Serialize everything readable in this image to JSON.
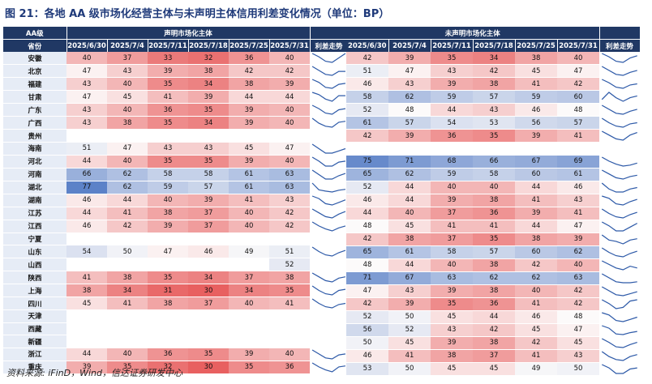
{
  "title": "图 21：各地 AA 级市场化经营主体与未声明主体信用利差变化情况（单位：BP）",
  "source": "资料来源: iFinD，Wind，信达证券研发中心",
  "header": {
    "aa_label": "AA级",
    "province_label": "省份",
    "declared_group": "声明市场化主体",
    "undeclared_group": "未声明市场化主体",
    "trend_label": "利差走势",
    "dates": [
      "2025/6/30",
      "2025/7/4",
      "2025/7/11",
      "2025/7/18",
      "2025/7/25",
      "2025/7/31"
    ]
  },
  "rows": [
    {
      "province": "安徽",
      "declared": [
        40,
        37,
        33,
        32,
        36,
        40
      ],
      "undeclared": [
        42,
        39,
        35,
        34,
        38,
        40
      ]
    },
    {
      "province": "北京",
      "declared": [
        47,
        43,
        39,
        38,
        42,
        42
      ],
      "undeclared": [
        51,
        47,
        43,
        42,
        45,
        47
      ]
    },
    {
      "province": "福建",
      "declared": [
        43,
        40,
        35,
        34,
        38,
        39
      ],
      "undeclared": [
        46,
        43,
        39,
        38,
        41,
        42
      ]
    },
    {
      "province": "甘肃",
      "declared": [
        47,
        45,
        41,
        39,
        44,
        44
      ],
      "undeclared": [
        58,
        62,
        59,
        57,
        59,
        60
      ]
    },
    {
      "province": "广东",
      "declared": [
        43,
        40,
        36,
        35,
        39,
        40
      ],
      "undeclared": [
        52,
        48,
        44,
        43,
        46,
        48
      ]
    },
    {
      "province": "广西",
      "declared": [
        43,
        38,
        35,
        34,
        39,
        40
      ],
      "undeclared": [
        61,
        57,
        54,
        53,
        56,
        57
      ]
    },
    {
      "province": "贵州",
      "declared": [
        null,
        null,
        null,
        null,
        null,
        null
      ],
      "undeclared": [
        42,
        39,
        36,
        35,
        39,
        41
      ]
    },
    {
      "province": "海南",
      "declared": [
        51,
        47,
        43,
        43,
        45,
        47
      ],
      "undeclared": [
        null,
        null,
        null,
        null,
        null,
        null
      ]
    },
    {
      "province": "河北",
      "declared": [
        44,
        40,
        35,
        35,
        39,
        40
      ],
      "undeclared": [
        75,
        71,
        68,
        66,
        67,
        69
      ]
    },
    {
      "province": "河南",
      "declared": [
        66,
        62,
        58,
        58,
        61,
        63
      ],
      "undeclared": [
        65,
        62,
        59,
        58,
        60,
        61
      ]
    },
    {
      "province": "湖北",
      "declared": [
        77,
        62,
        59,
        57,
        61,
        63
      ],
      "undeclared": [
        52,
        44,
        40,
        40,
        44,
        46
      ]
    },
    {
      "province": "湖南",
      "declared": [
        46,
        44,
        40,
        39,
        41,
        43
      ],
      "undeclared": [
        46,
        44,
        39,
        38,
        41,
        43
      ]
    },
    {
      "province": "江苏",
      "declared": [
        44,
        41,
        38,
        37,
        40,
        42
      ],
      "undeclared": [
        44,
        40,
        37,
        36,
        39,
        41
      ]
    },
    {
      "province": "江西",
      "declared": [
        46,
        42,
        39,
        37,
        40,
        42
      ],
      "undeclared": [
        48,
        45,
        41,
        41,
        44,
        47
      ]
    },
    {
      "province": "宁夏",
      "declared": [
        null,
        null,
        null,
        null,
        null,
        null
      ],
      "undeclared": [
        42,
        38,
        37,
        35,
        38,
        39
      ]
    },
    {
      "province": "山东",
      "declared": [
        54,
        50,
        47,
        46,
        49,
        51
      ],
      "undeclared": [
        65,
        61,
        58,
        57,
        60,
        62
      ]
    },
    {
      "province": "山西",
      "declared": [
        null,
        null,
        null,
        null,
        null,
        52
      ],
      "undeclared": [
        48,
        44,
        40,
        38,
        42,
        40
      ]
    },
    {
      "province": "陕西",
      "declared": [
        41,
        38,
        35,
        34,
        37,
        38
      ],
      "undeclared": [
        71,
        67,
        63,
        62,
        62,
        63
      ]
    },
    {
      "province": "上海",
      "declared": [
        38,
        34,
        31,
        30,
        34,
        35
      ],
      "undeclared": [
        47,
        43,
        39,
        38,
        40,
        42
      ]
    },
    {
      "province": "四川",
      "declared": [
        45,
        41,
        38,
        37,
        40,
        41
      ],
      "undeclared": [
        42,
        39,
        35,
        36,
        41,
        42
      ]
    },
    {
      "province": "天津",
      "declared": [
        null,
        null,
        null,
        null,
        null,
        null
      ],
      "undeclared": [
        52,
        50,
        45,
        44,
        46,
        48
      ]
    },
    {
      "province": "西藏",
      "declared": [
        null,
        null,
        null,
        null,
        null,
        null
      ],
      "undeclared": [
        56,
        52,
        43,
        42,
        45,
        47
      ]
    },
    {
      "province": "新疆",
      "declared": [
        null,
        null,
        null,
        null,
        null,
        null
      ],
      "undeclared": [
        50,
        45,
        39,
        38,
        42,
        45
      ]
    },
    {
      "province": "浙江",
      "declared": [
        44,
        40,
        36,
        35,
        39,
        40
      ],
      "undeclared": [
        46,
        41,
        38,
        37,
        41,
        43
      ]
    },
    {
      "province": "重庆",
      "declared": [
        39,
        35,
        32,
        30,
        35,
        36
      ],
      "undeclared": [
        53,
        50,
        45,
        45,
        49,
        50
      ]
    }
  ]
}
